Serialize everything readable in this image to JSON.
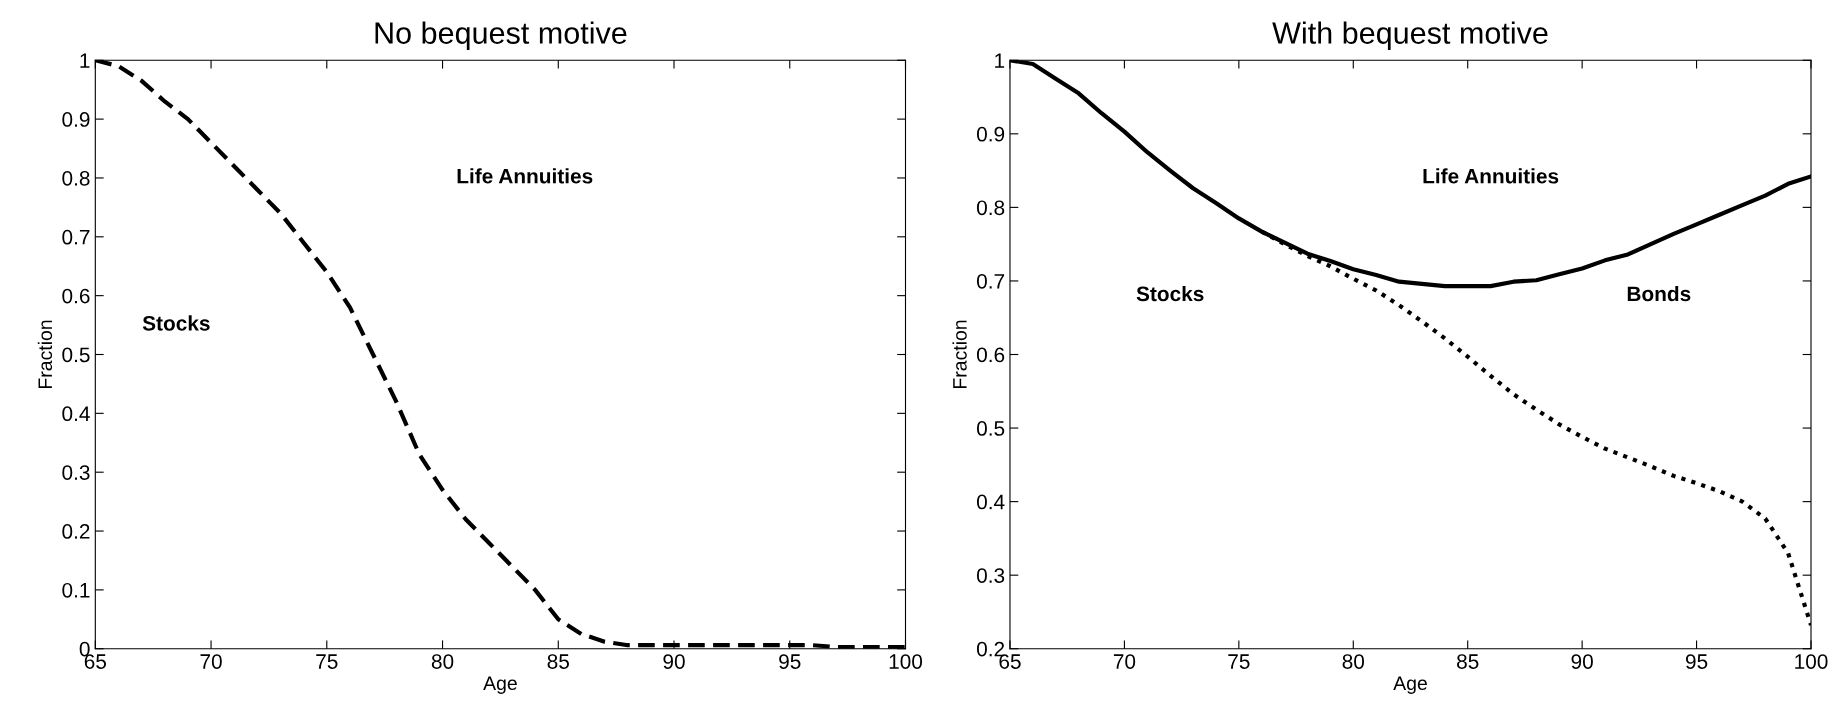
{
  "chart_data": [
    {
      "type": "line",
      "title": "No bequest motive",
      "xlabel": "Age",
      "ylabel": "Fraction",
      "xlim": [
        65,
        100
      ],
      "xticks": [
        65,
        70,
        75,
        80,
        85,
        90,
        95,
        100
      ],
      "ylim": [
        0,
        1
      ],
      "yticks": [
        0,
        0.1,
        0.2,
        0.3,
        0.4,
        0.5,
        0.6,
        0.7,
        0.8,
        0.9,
        1
      ],
      "grid": false,
      "legend": false,
      "marker": "none",
      "annotations": [
        "Life Annuities",
        "Stocks"
      ],
      "series": [
        {
          "color": "#000000",
          "line_style": "dashed",
          "x": [
            65,
            66,
            67,
            68,
            69,
            70,
            71,
            72,
            73,
            74,
            75,
            76,
            77,
            78,
            79,
            80,
            81,
            82,
            83,
            84,
            85,
            86,
            87,
            88,
            90,
            95,
            96,
            97,
            100
          ],
          "values": [
            1,
            0.99,
            0.965,
            0.93,
            0.9,
            0.86,
            0.82,
            0.78,
            0.74,
            0.69,
            0.64,
            0.58,
            0.5,
            0.42,
            0.33,
            0.27,
            0.22,
            0.18,
            0.14,
            0.1,
            0.05,
            0.025,
            0.012,
            0.006,
            0.006,
            0.006,
            0.006,
            0.003,
            0.003
          ]
        }
      ]
    },
    {
      "type": "line",
      "title": "With bequest motive",
      "xlabel": "Age",
      "ylabel": "Fraction",
      "xlim": [
        65,
        100
      ],
      "xticks": [
        65,
        70,
        75,
        80,
        85,
        90,
        95,
        100
      ],
      "ylim": [
        0.2,
        1
      ],
      "yticks": [
        0.2,
        0.3,
        0.4,
        0.5,
        0.6,
        0.7,
        0.8,
        0.9,
        1
      ],
      "grid": false,
      "legend": false,
      "marker": "none",
      "annotations": [
        "Life Annuities",
        "Stocks",
        "Bonds"
      ],
      "series": [
        {
          "color": "#000000",
          "line_style": "solid",
          "x": [
            65,
            66,
            67,
            68,
            69,
            70,
            71,
            72,
            73,
            74,
            75,
            76,
            77,
            78,
            79,
            80,
            81,
            82,
            83,
            84,
            85,
            86,
            87,
            88,
            89,
            90,
            91,
            92,
            93,
            94,
            95,
            96,
            97,
            98,
            99,
            100
          ],
          "values": [
            1,
            0.995,
            0.975,
            0.955,
            0.928,
            0.903,
            0.875,
            0.85,
            0.826,
            0.806,
            0.785,
            0.767,
            0.752,
            0.737,
            0.727,
            0.716,
            0.708,
            0.699,
            0.696,
            0.693,
            0.693,
            0.693,
            0.699,
            0.701,
            0.709,
            0.717,
            0.728,
            0.736,
            0.75,
            0.764,
            0.777,
            0.79,
            0.803,
            0.816,
            0.832,
            0.842
          ]
        },
        {
          "color": "#000000",
          "line_style": "dotted",
          "x": [
            76,
            77,
            78,
            79,
            80,
            81,
            82,
            83,
            84,
            85,
            86,
            87,
            88,
            89,
            90,
            91,
            92,
            93,
            94,
            95,
            96,
            97,
            98,
            99,
            100
          ],
          "values": [
            0.767,
            0.75,
            0.734,
            0.72,
            0.703,
            0.687,
            0.667,
            0.645,
            0.622,
            0.597,
            0.571,
            0.546,
            0.525,
            0.505,
            0.488,
            0.472,
            0.46,
            0.448,
            0.435,
            0.425,
            0.414,
            0.4,
            0.377,
            0.33,
            0.232
          ]
        }
      ]
    }
  ]
}
